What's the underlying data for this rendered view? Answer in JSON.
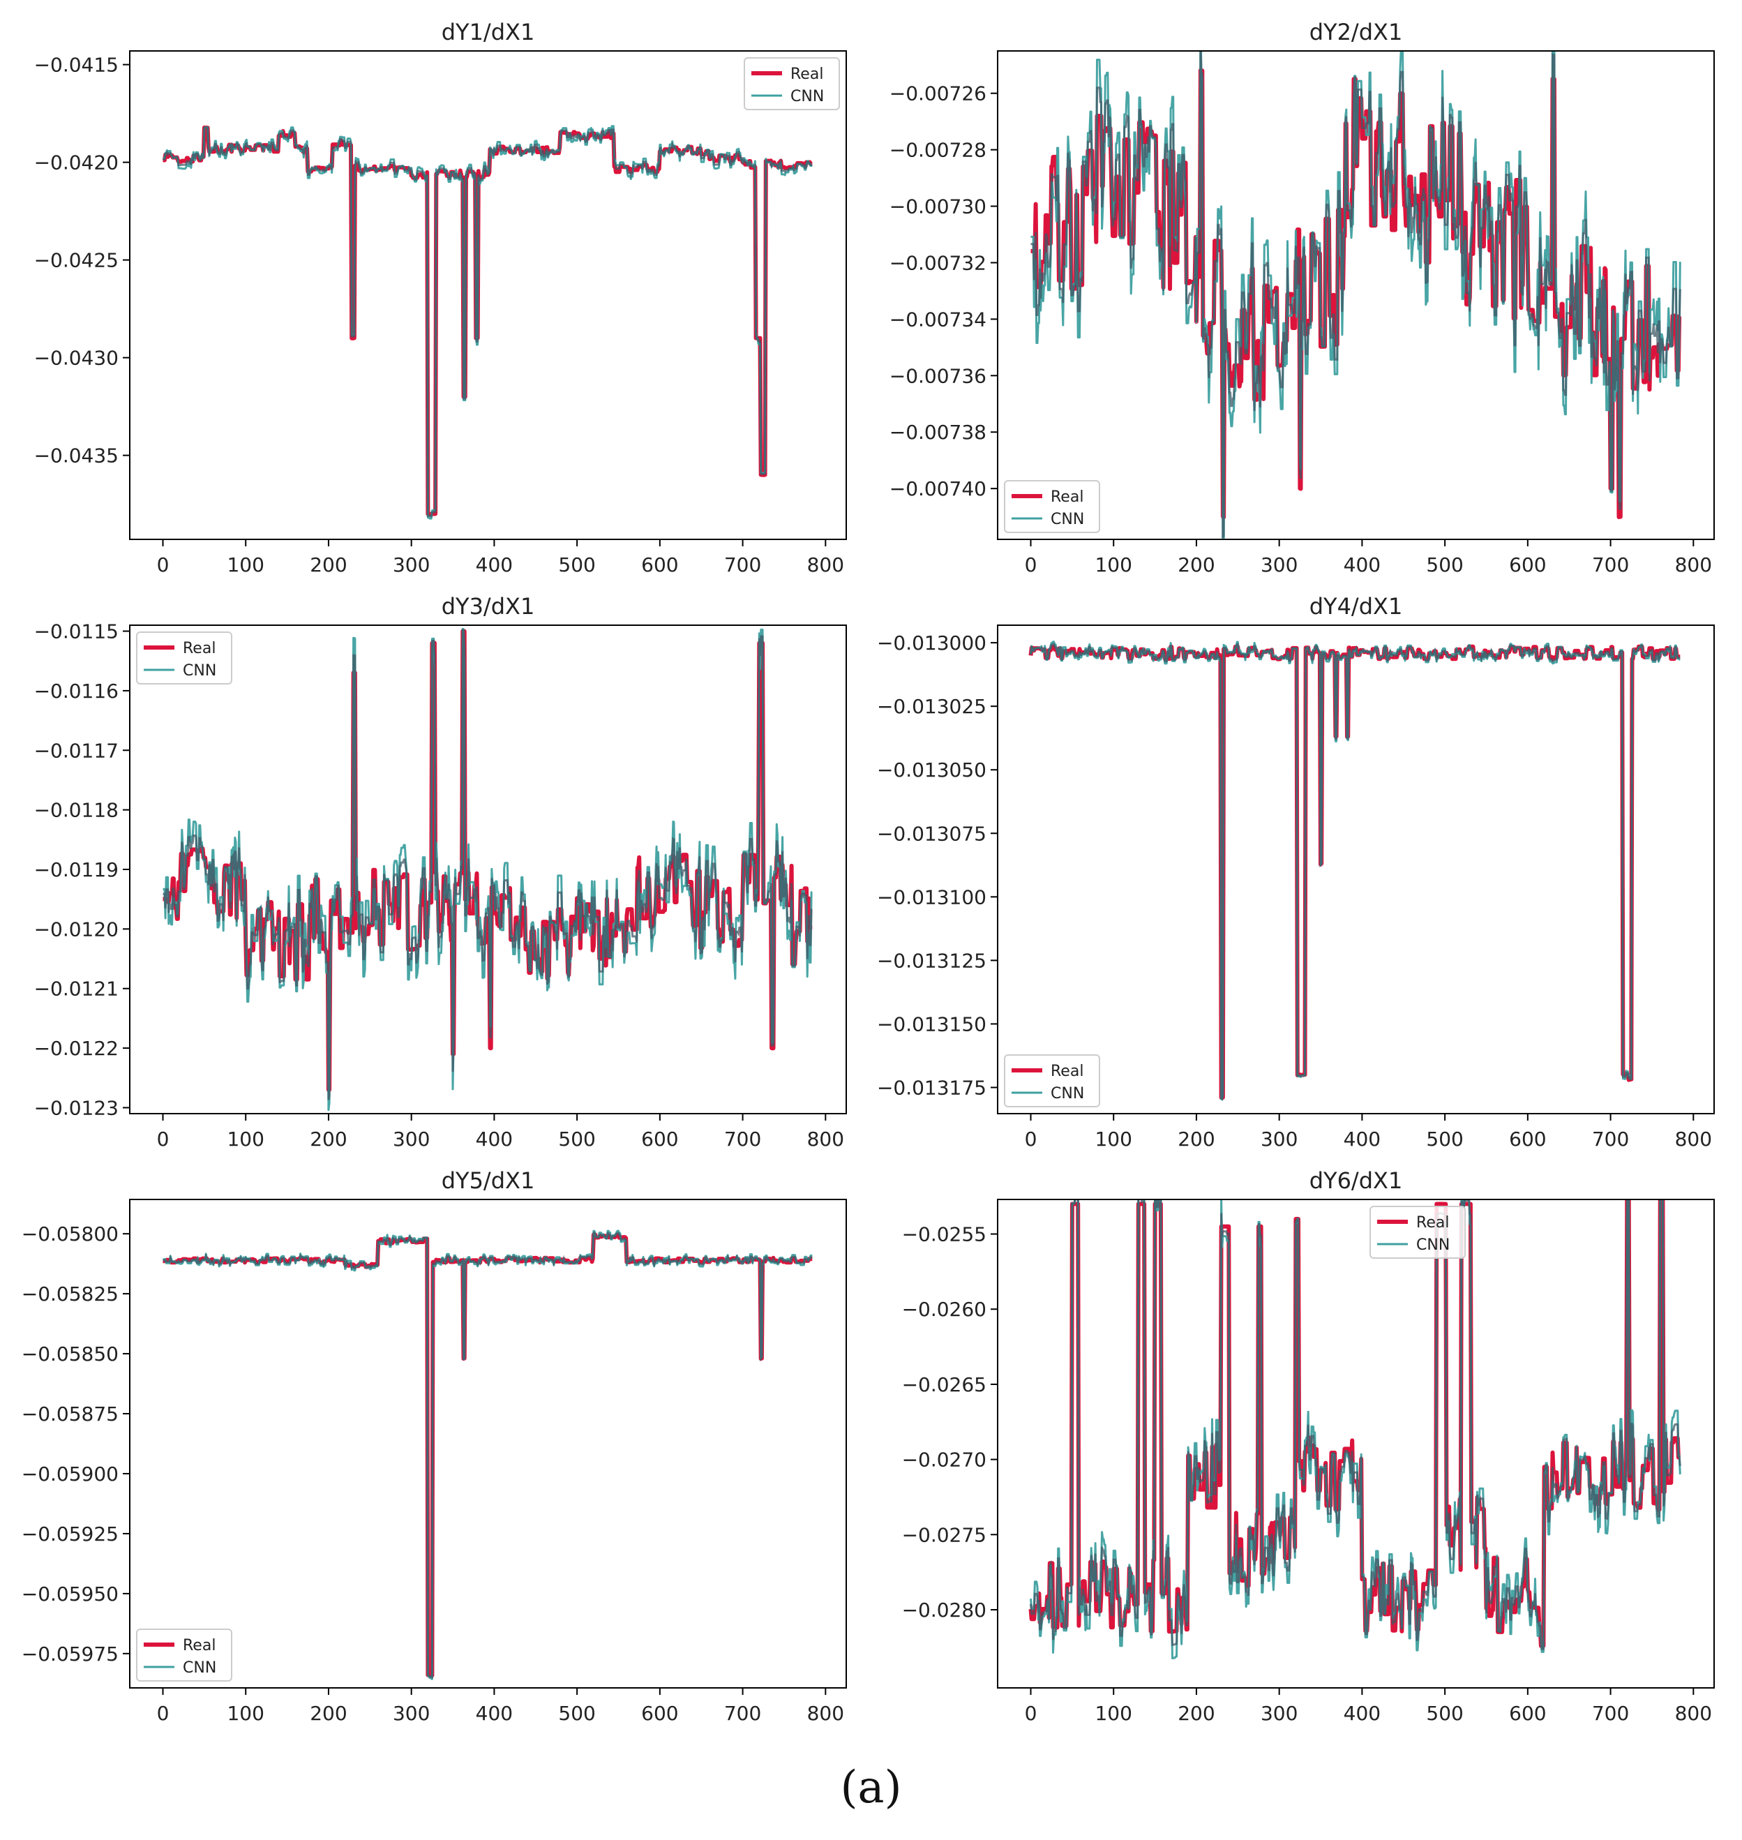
{
  "caption": "(a)",
  "colors": {
    "real": "#dc143c",
    "cnn": "#3fa0a0",
    "overlap": "#3f5865"
  },
  "chart_data": [
    {
      "type": "line",
      "title": "dY1/dX1",
      "legend": "top-right",
      "xlim": [
        -40,
        825
      ],
      "ylim": [
        -0.04393,
        -0.04143
      ],
      "xticks": [
        0,
        100,
        200,
        300,
        400,
        500,
        600,
        700,
        800
      ],
      "xtick_labels": [
        "0",
        "100",
        "200",
        "300",
        "400",
        "500",
        "600",
        "700",
        "800"
      ],
      "yticks": [
        -0.0435,
        -0.043,
        -0.0425,
        -0.042,
        -0.0415
      ],
      "ytick_labels": [
        "−0.0435",
        "−0.0430",
        "−0.0425",
        "−0.0420",
        "−0.0415"
      ],
      "n": 785,
      "base": -0.04198,
      "noise": 4e-05,
      "noise_real": 2e-05,
      "segments": [
        [
          0,
          0
        ],
        [
          50,
          0.00015
        ],
        [
          55,
          5e-05
        ],
        [
          140,
          0.00012
        ],
        [
          160,
          5e-05
        ],
        [
          175,
          -5e-05
        ],
        [
          205,
          8e-05
        ],
        [
          230,
          -5e-05
        ],
        [
          300,
          -8e-05
        ],
        [
          395,
          4e-05
        ],
        [
          480,
          0.00012
        ],
        [
          545,
          -5e-05
        ],
        [
          600,
          4e-05
        ],
        [
          660,
          0.0
        ],
        [
          700,
          -3e-05
        ],
        [
          785,
          0
        ]
      ],
      "spikes": [
        [
          228,
          -0.0429,
          4
        ],
        [
          320,
          -0.0438,
          10
        ],
        [
          363,
          -0.0432,
          3
        ],
        [
          378,
          -0.0429,
          3
        ],
        [
          716,
          -0.0429,
          6
        ],
        [
          722,
          -0.0436,
          6
        ]
      ],
      "series": [
        {
          "name": "Real"
        },
        {
          "name": "CNN"
        }
      ]
    },
    {
      "type": "line",
      "title": "dY2/dX1",
      "legend": "bottom-left",
      "xlim": [
        -40,
        825
      ],
      "ylim": [
        -0.007418,
        -0.007245
      ],
      "xticks": [
        0,
        100,
        200,
        300,
        400,
        500,
        600,
        700,
        800
      ],
      "xtick_labels": [
        "0",
        "100",
        "200",
        "300",
        "400",
        "500",
        "600",
        "700",
        "800"
      ],
      "yticks": [
        -0.0074,
        -0.00738,
        -0.00736,
        -0.00734,
        -0.00732,
        -0.0073,
        -0.00728,
        -0.00726
      ],
      "ytick_labels": [
        "−0.00740",
        "−0.00738",
        "−0.00736",
        "−0.00734",
        "−0.00732",
        "−0.00730",
        "−0.00728",
        "−0.00726"
      ],
      "n": 785,
      "base": -0.007305,
      "noise": 2e-05,
      "noise_real": 2.5e-05,
      "segments": [
        [
          0,
          0.0
        ],
        [
          80,
          1.5e-05
        ],
        [
          160,
          0.0
        ],
        [
          200,
          -3e-05
        ],
        [
          240,
          -4e-05
        ],
        [
          320,
          -2e-05
        ],
        [
          380,
          2e-05
        ],
        [
          460,
          1e-05
        ],
        [
          520,
          -1e-05
        ],
        [
          600,
          -3e-05
        ],
        [
          700,
          -3.5e-05
        ],
        [
          785,
          -2e-05
        ]
      ],
      "spikes": [
        [
          205,
          -0.007252,
          3
        ],
        [
          232,
          -0.00741,
          2
        ],
        [
          325,
          -0.0074,
          2
        ],
        [
          390,
          -0.007255,
          3
        ],
        [
          630,
          -0.007255,
          3
        ],
        [
          700,
          -0.0074,
          3
        ],
        [
          710,
          -0.00741,
          3
        ]
      ],
      "series": [
        {
          "name": "Real"
        },
        {
          "name": "CNN"
        }
      ]
    },
    {
      "type": "line",
      "title": "dY3/dX1",
      "legend": "top-left",
      "xlim": [
        -40,
        825
      ],
      "ylim": [
        -0.01231,
        -0.01149
      ],
      "xticks": [
        0,
        100,
        200,
        300,
        400,
        500,
        600,
        700,
        800
      ],
      "xtick_labels": [
        "0",
        "100",
        "200",
        "300",
        "400",
        "500",
        "600",
        "700",
        "800"
      ],
      "yticks": [
        -0.0123,
        -0.0122,
        -0.0121,
        -0.012,
        -0.0119,
        -0.0118,
        -0.0117,
        -0.0116,
        -0.0115
      ],
      "ytick_labels": [
        "−0.0123",
        "−0.0122",
        "−0.0121",
        "−0.0120",
        "−0.0119",
        "−0.0118",
        "−0.0117",
        "−0.0116",
        "−0.0115"
      ],
      "n": 785,
      "base": -0.01197,
      "noise": 6e-05,
      "noise_real": 7e-05,
      "segments": [
        [
          0,
          5e-05
        ],
        [
          100,
          -5e-05
        ],
        [
          180,
          0.0
        ],
        [
          260,
          0.0
        ],
        [
          380,
          -2e-05
        ],
        [
          420,
          -5e-05
        ],
        [
          500,
          -3e-05
        ],
        [
          560,
          3e-05
        ],
        [
          640,
          0.0
        ],
        [
          700,
          8e-05
        ],
        [
          760,
          -2e-05
        ],
        [
          785,
          0.0
        ]
      ],
      "spikes": [
        [
          200,
          -0.01227,
          2
        ],
        [
          230,
          -0.01157,
          3
        ],
        [
          325,
          -0.01152,
          4
        ],
        [
          362,
          -0.0115,
          3
        ],
        [
          350,
          -0.01221,
          2
        ],
        [
          395,
          -0.0122,
          2
        ],
        [
          720,
          -0.01152,
          5
        ],
        [
          735,
          -0.0122,
          3
        ]
      ],
      "series": [
        {
          "name": "Real"
        },
        {
          "name": "CNN"
        }
      ]
    },
    {
      "type": "line",
      "title": "dY4/dX1",
      "legend": "bottom-left",
      "xlim": [
        -40,
        825
      ],
      "ylim": [
        -0.0131853,
        -0.0129931
      ],
      "xticks": [
        0,
        100,
        200,
        300,
        400,
        500,
        600,
        700,
        800
      ],
      "xtick_labels": [
        "0",
        "100",
        "200",
        "300",
        "400",
        "500",
        "600",
        "700",
        "800"
      ],
      "yticks": [
        -0.013175,
        -0.01315,
        -0.013125,
        -0.0131,
        -0.013075,
        -0.01305,
        -0.013025,
        -0.013
      ],
      "ytick_labels": [
        "−0.013175",
        "−0.013150",
        "−0.013125",
        "−0.013100",
        "−0.013075",
        "−0.013050",
        "−0.013025",
        "−0.013000"
      ],
      "n": 785,
      "base": -0.013004,
      "noise": 2e-06,
      "noise_real": 2.5e-06,
      "segments": [
        [
          0,
          0
        ],
        [
          785,
          0
        ]
      ],
      "spikes": [
        [
          230,
          -0.013179,
          3
        ],
        [
          322,
          -0.01317,
          10
        ],
        [
          350,
          -0.013087,
          2
        ],
        [
          368,
          -0.013037,
          2
        ],
        [
          382,
          -0.013037,
          2
        ],
        [
          715,
          -0.01317,
          8
        ],
        [
          722,
          -0.013172,
          4
        ]
      ],
      "series": [
        {
          "name": "Real"
        },
        {
          "name": "CNN"
        }
      ]
    },
    {
      "type": "line",
      "title": "dY5/dX1",
      "legend": "bottom-left",
      "xlim": [
        -40,
        825
      ],
      "ylim": [
        -0.059893,
        -0.057857
      ],
      "xticks": [
        0,
        100,
        200,
        300,
        400,
        500,
        600,
        700,
        800
      ],
      "xtick_labels": [
        "0",
        "100",
        "200",
        "300",
        "400",
        "500",
        "600",
        "700",
        "800"
      ],
      "yticks": [
        -0.05975,
        -0.0595,
        -0.05925,
        -0.059,
        -0.05875,
        -0.0585,
        -0.05825,
        -0.058
      ],
      "ytick_labels": [
        "−0.05975",
        "−0.05950",
        "−0.05925",
        "−0.05900",
        "−0.05875",
        "−0.05850",
        "−0.05825",
        "−0.05800"
      ],
      "n": 785,
      "base": -0.05811,
      "noise": 2e-05,
      "noise_real": 1e-05,
      "segments": [
        [
          0,
          0
        ],
        [
          220,
          -2e-05
        ],
        [
          260,
          8e-05
        ],
        [
          320,
          0.0
        ],
        [
          520,
          0.0001
        ],
        [
          560,
          0.0
        ],
        [
          785,
          0
        ]
      ],
      "spikes": [
        [
          320,
          -0.05984,
          6
        ],
        [
          363,
          -0.05852,
          2
        ],
        [
          722,
          -0.05852,
          2
        ]
      ],
      "series": [
        {
          "name": "Real"
        },
        {
          "name": "CNN"
        }
      ]
    },
    {
      "type": "line",
      "title": "dY6/dX1",
      "legend": "top-center",
      "xlim": [
        -40,
        825
      ],
      "ylim": [
        -0.02852,
        -0.02527
      ],
      "xticks": [
        0,
        100,
        200,
        300,
        400,
        500,
        600,
        700,
        800
      ],
      "xtick_labels": [
        "0",
        "100",
        "200",
        "300",
        "400",
        "500",
        "600",
        "700",
        "800"
      ],
      "yticks": [
        -0.028,
        -0.0275,
        -0.027,
        -0.0265,
        -0.026,
        -0.0255
      ],
      "ytick_labels": [
        "−0.0280",
        "−0.0275",
        "−0.0270",
        "−0.0265",
        "−0.0260",
        "−0.0255"
      ],
      "n": 785,
      "base": -0.0279,
      "noise": 0.0002,
      "noise_real": 0.00025,
      "segments": [
        [
          0,
          0
        ],
        [
          190,
          0.0008
        ],
        [
          240,
          0.0003
        ],
        [
          320,
          0.0008
        ],
        [
          400,
          0.0
        ],
        [
          490,
          0.0004
        ],
        [
          550,
          0.0
        ],
        [
          600,
          -0.0002
        ],
        [
          620,
          0.0008
        ],
        [
          700,
          0.0008
        ],
        [
          785,
          0.0007
        ]
      ],
      "spikes": [
        [
          50,
          -0.0253,
          8
        ],
        [
          130,
          -0.0253,
          8
        ],
        [
          150,
          -0.0253,
          8
        ],
        [
          230,
          -0.02545,
          10
        ],
        [
          275,
          -0.02545,
          4
        ],
        [
          320,
          -0.0254,
          4
        ],
        [
          490,
          -0.0253,
          12
        ],
        [
          520,
          -0.0253,
          12
        ],
        [
          720,
          -0.0252,
          3
        ],
        [
          760,
          -0.0252,
          4
        ]
      ],
      "series": [
        {
          "name": "Real"
        },
        {
          "name": "CNN"
        }
      ]
    }
  ]
}
